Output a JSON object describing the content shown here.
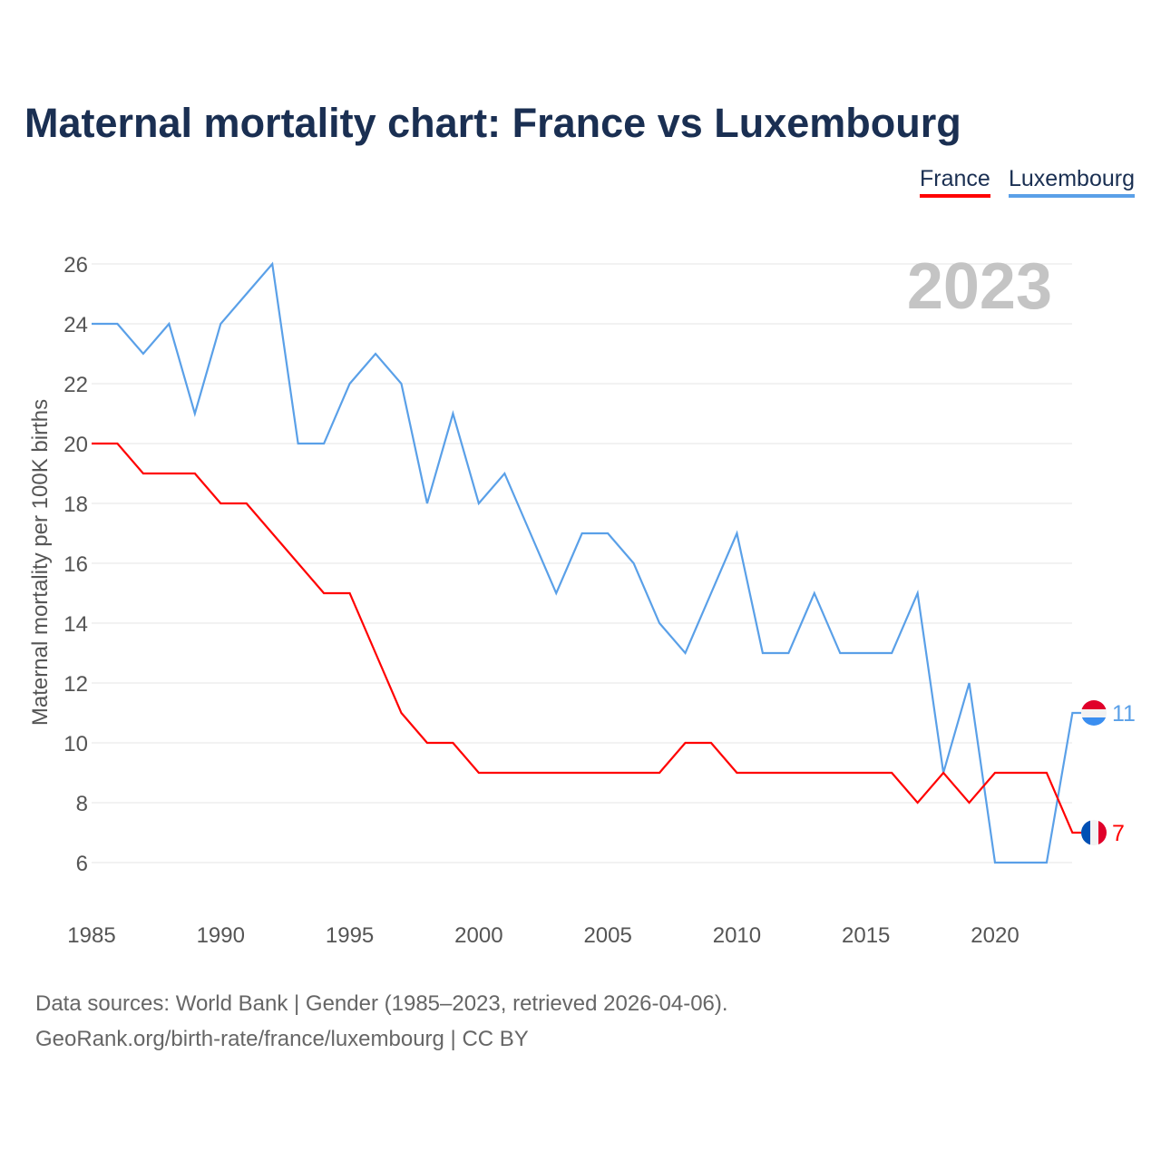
{
  "title": "Maternal mortality chart: France vs Luxembourg",
  "legend": {
    "france": "France",
    "luxembourg": "Luxembourg"
  },
  "source": {
    "line1": "Data sources: World Bank | Gender (1985–2023, retrieved 2026-04-06).",
    "line2": "GeoRank.org/birth-rate/france/luxembourg | CC BY"
  },
  "chart_data": {
    "type": "line",
    "title": "Maternal mortality chart: France vs Luxembourg",
    "ylabel": "Maternal mortality per 100K births",
    "xlabel": "",
    "year_label": "2023",
    "ylim": [
      4.5,
      27
    ],
    "xlim": [
      1985,
      2023
    ],
    "yticks": [
      6,
      8,
      10,
      12,
      14,
      16,
      18,
      20,
      22,
      24,
      26
    ],
    "xticks": [
      1985,
      1990,
      1995,
      2000,
      2005,
      2010,
      2015,
      2020
    ],
    "x": [
      1985,
      1986,
      1987,
      1988,
      1989,
      1990,
      1991,
      1992,
      1993,
      1994,
      1995,
      1996,
      1997,
      1998,
      1999,
      2000,
      2001,
      2002,
      2003,
      2004,
      2005,
      2006,
      2007,
      2008,
      2009,
      2010,
      2011,
      2012,
      2013,
      2014,
      2015,
      2016,
      2017,
      2018,
      2019,
      2020,
      2021,
      2022,
      2023
    ],
    "series": [
      {
        "name": "France",
        "color": "#ff0000",
        "end_label": "7",
        "values": [
          20,
          20,
          19,
          19,
          19,
          18,
          18,
          17,
          16,
          15,
          15,
          13,
          11,
          10,
          10,
          9,
          9,
          9,
          9,
          9,
          9,
          9,
          9,
          10,
          10,
          9,
          9,
          9,
          9,
          9,
          9,
          9,
          8,
          9,
          8,
          9,
          9,
          9,
          7
        ]
      },
      {
        "name": "Luxembourg",
        "color": "#5aa0e8",
        "end_label": "11",
        "values": [
          24,
          24,
          23,
          24,
          21,
          24,
          25,
          26,
          20,
          20,
          22,
          23,
          22,
          18,
          21,
          18,
          19,
          17,
          15,
          17,
          17,
          16,
          14,
          13,
          15,
          17,
          13,
          13,
          15,
          13,
          13,
          13,
          15,
          9,
          12,
          6,
          6,
          6,
          11
        ]
      }
    ]
  }
}
